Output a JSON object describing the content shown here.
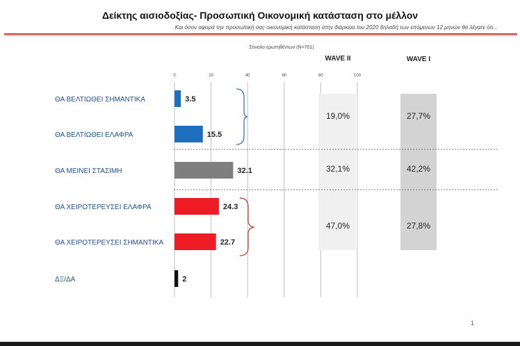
{
  "header": {
    "title": "Δείκτης αισιοδοξίας- Προσωπική Οικονομική κατάσταση στο μέλλον",
    "subtitle": "Και όσον αφορά την προσωπική σας οικονομική κατάσταση στην διάρκεια του 2020 δηλαδή των επόμενων 12 μηνών θα λέγατε ότι..."
  },
  "footer": {
    "page_number": "1"
  },
  "colors": {
    "blue": "#1f6fbf",
    "gray": "#7f7f7f",
    "red": "#ee1c25",
    "black": "#111111",
    "accent_rule": "#c0392b"
  },
  "chart_data": {
    "type": "bar",
    "orientation": "horizontal",
    "sample_label": "Σύνολο ερωτηθέντων (Ν=701)",
    "categories": [
      "ΘΑ ΒΕΛΤΙΩΘΕΙ ΣΗΜΑΝΤΙΚΑ",
      "ΘΑ ΒΕΛΤΙΩΘΕΙ ΕΛΑΦΡΑ",
      "ΘΑ ΜΕΙΝΕΙ ΣΤΑΣΙΜΗ",
      "ΘΑ ΧΕΙΡΟΤΕΡΕΥΣΕΙ ΕΛΑΦΡΑ",
      "ΘΑ ΧΕΙΡΟΤΕΡΕΥΣΕΙ ΣΗΜΑΝΤΙΚΑ",
      "ΔΞ/ΔΑ"
    ],
    "values": [
      3.5,
      15.5,
      32.1,
      24.3,
      22.7,
      2
    ],
    "value_labels": [
      "3.5",
      "15.5",
      "32.1",
      "24.3",
      "22.7",
      "2"
    ],
    "bar_colors": [
      "blue",
      "blue",
      "gray",
      "red",
      "red",
      "black"
    ],
    "xlim": [
      0,
      100
    ],
    "x_ticks": [
      "0",
      "20",
      "40",
      "60",
      "80",
      "100"
    ],
    "grid": true,
    "waves": [
      {
        "name": "WAVE II",
        "groups": [
          "19,0%",
          "32,1%",
          "47,0%"
        ]
      },
      {
        "name": "WAVE I",
        "groups": [
          "27,7%",
          "42,2%",
          "27,8%"
        ]
      }
    ]
  }
}
